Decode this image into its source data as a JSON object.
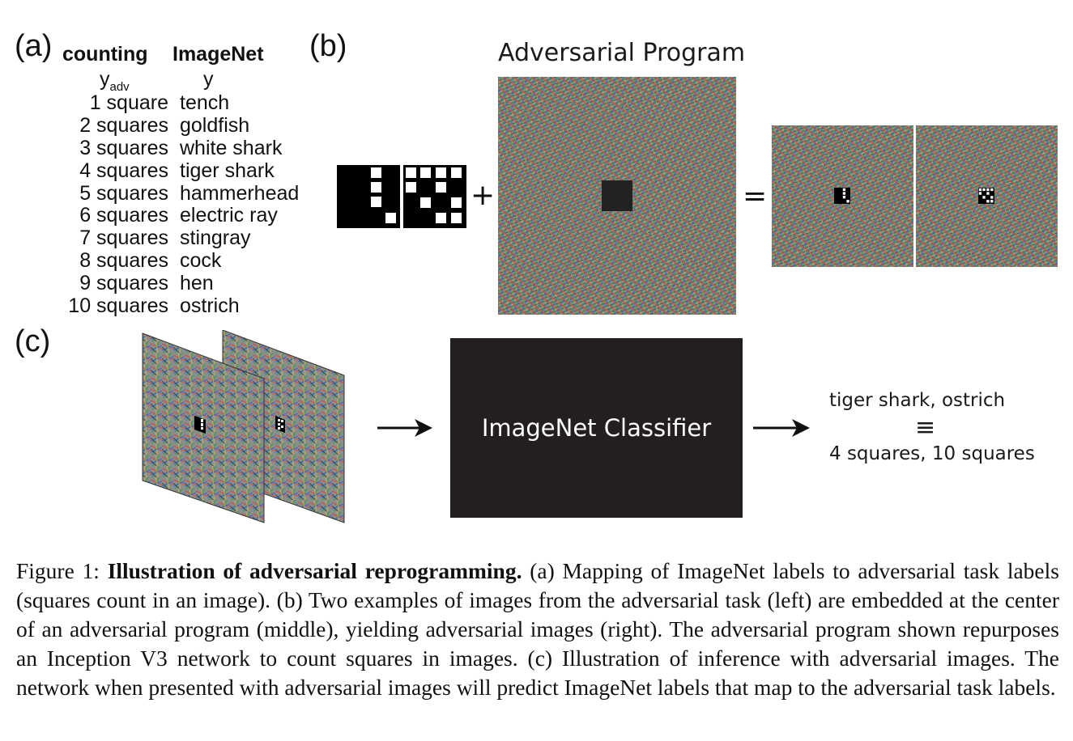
{
  "panel_a": {
    "letter": "(a)",
    "col_counting": "counting",
    "col_imagenet": "ImageNet",
    "sym_yadv_base": "y",
    "sym_yadv_sub": "adv",
    "sym_y": "y",
    "rows": [
      {
        "count": "1 square",
        "label": "tench"
      },
      {
        "count": "2 squares",
        "label": "goldfish"
      },
      {
        "count": "3 squares",
        "label": "white shark"
      },
      {
        "count": "4 squares",
        "label": "tiger shark"
      },
      {
        "count": "5 squares",
        "label": "hammerhead"
      },
      {
        "count": "6 squares",
        "label": "electric ray"
      },
      {
        "count": "7 squares",
        "label": "stingray"
      },
      {
        "count": "8 squares",
        "label": "cock"
      },
      {
        "count": "9 squares",
        "label": "hen"
      },
      {
        "count": "10 squares",
        "label": "ostrich"
      }
    ]
  },
  "panel_b": {
    "letter": "(b)",
    "title": "Adversarial Program",
    "plus": "+",
    "equals": "="
  },
  "panel_c": {
    "letter": "(c)",
    "classifier_label": "ImageNet Classifier",
    "output_top": "tiger shark, ostrich",
    "equiv": "≡",
    "output_bottom": "4 squares, 10 squares"
  },
  "caption": {
    "prefix": "Figure 1: ",
    "bold": "Illustration of adversarial reprogramming.",
    "text": " (a) Mapping of ImageNet labels to adversarial task labels (squares count in an image). (b) Two examples of images from the adversarial task (left) are embedded at the center of an adversarial program (middle), yielding adversarial images (right). The adversarial program shown repurposes an Inception V3 network to count squares in images. (c) Illustration of inference with adversarial images. The network when presented with adversarial images will predict ImageNet labels that map to the adversarial task labels."
  },
  "colors": {
    "classifier_bg": "#231f20",
    "text": "#111111"
  }
}
